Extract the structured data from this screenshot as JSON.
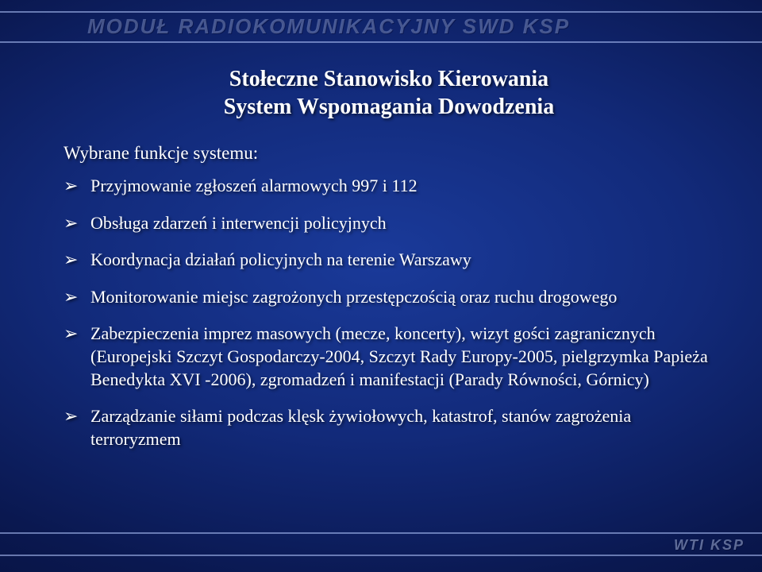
{
  "header": {
    "text": "MODUŁ RADIOKOMUNIKACYJNY SWD KSP"
  },
  "title": {
    "line1": "Stołeczne Stanowisko Kierowania",
    "line2": "System Wspomagania Dowodzenia"
  },
  "intro": "Wybrane funkcje systemu:",
  "bullets": [
    "Przyjmowanie zgłoszeń alarmowych 997 i 112",
    "Obsługa zdarzeń i interwencji policyjnych",
    "Koordynacja działań policyjnych na terenie Warszawy",
    "Monitorowanie miejsc zagrożonych przestępczością oraz ruchu drogowego",
    "Zabezpieczenia imprez masowych (mecze, koncerty), wizyt gości zagranicznych (Europejski Szczyt Gospodarczy-2004, Szczyt Rady Europy-2005, pielgrzymka Papieża Benedykta XVI -2006), zgromadzeń i manifestacji (Parady Równości, Górnicy)",
    "Zarządzanie siłami podczas klęsk żywiołowych, katastrof, stanów zagrożenia terroryzmem"
  ],
  "footer": {
    "text": "WTI KSP"
  },
  "style": {
    "background_gradient": [
      "#1a3a9a",
      "#122a7a",
      "#0a1850",
      "#040c30"
    ],
    "text_color": "#ffffff",
    "header_color": "rgba(170,190,240,0.38)",
    "rule_color": "rgba(180,200,255,0.55)",
    "title_fontsize_pt": 21,
    "body_fontsize_pt": 17,
    "font_family": "Times New Roman"
  }
}
